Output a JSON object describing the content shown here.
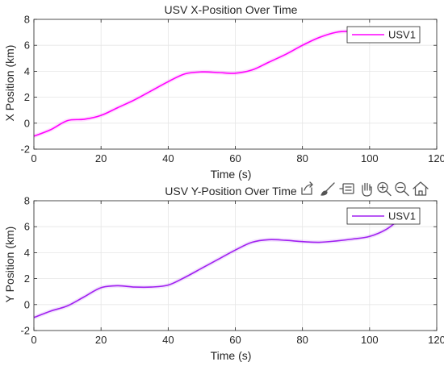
{
  "chart_data": [
    {
      "type": "line",
      "title": "USV X-Position Over Time",
      "xlabel": "Time (s)",
      "ylabel": "X Position (km)",
      "xlim": [
        0,
        120
      ],
      "ylim": [
        -2,
        8
      ],
      "xticks": [
        0,
        20,
        40,
        60,
        80,
        100,
        120
      ],
      "yticks": [
        -2,
        0,
        2,
        4,
        6,
        8
      ],
      "grid": true,
      "legend": "top-right",
      "series": [
        {
          "name": "USV1",
          "color": "#ff00ff",
          "x": [
            0,
            5,
            10,
            15,
            20,
            25,
            30,
            35,
            40,
            45,
            50,
            55,
            60,
            65,
            70,
            75,
            80,
            85,
            90,
            95,
            100,
            105,
            109
          ],
          "y": [
            -1.0,
            -0.5,
            0.2,
            0.3,
            0.6,
            1.2,
            1.8,
            2.5,
            3.2,
            3.8,
            3.95,
            3.9,
            3.85,
            4.1,
            4.7,
            5.3,
            6.0,
            6.6,
            7.0,
            7.1,
            7.15,
            7.2,
            7.2
          ]
        }
      ]
    },
    {
      "type": "line",
      "title": "USV Y-Position Over Time",
      "xlabel": "Time (s)",
      "ylabel": "Y Position (km)",
      "xlim": [
        0,
        120
      ],
      "ylim": [
        -2,
        8
      ],
      "xticks": [
        0,
        20,
        40,
        60,
        80,
        100,
        120
      ],
      "yticks": [
        -2,
        0,
        2,
        4,
        6,
        8
      ],
      "grid": true,
      "legend": "top-right",
      "series": [
        {
          "name": "USV1",
          "color": "#a020f0",
          "x": [
            0,
            5,
            10,
            15,
            20,
            25,
            30,
            35,
            40,
            45,
            50,
            55,
            60,
            65,
            70,
            75,
            80,
            85,
            90,
            95,
            100,
            105,
            109
          ],
          "y": [
            -1.0,
            -0.5,
            -0.1,
            0.6,
            1.3,
            1.45,
            1.35,
            1.35,
            1.5,
            2.1,
            2.8,
            3.5,
            4.2,
            4.8,
            5.0,
            4.95,
            4.85,
            4.8,
            4.9,
            5.05,
            5.25,
            5.8,
            6.6
          ]
        }
      ]
    }
  ],
  "toolbar": {
    "icons": [
      "export-icon",
      "brush-icon",
      "data-tip-icon",
      "pan-icon",
      "zoom-in-icon",
      "zoom-out-icon",
      "home-icon"
    ]
  }
}
